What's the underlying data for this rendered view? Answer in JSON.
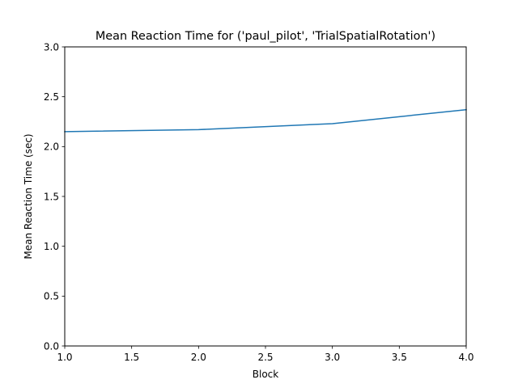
{
  "chart_data": {
    "type": "line",
    "title": "Mean Reaction Time for ('paul_pilot', 'TrialSpatialRotation')",
    "xlabel": "Block",
    "ylabel": "Mean Reaction Time (sec)",
    "xlim": [
      1.0,
      4.0
    ],
    "ylim": [
      0.0,
      3.0
    ],
    "grid": false,
    "x_ticks": [
      "1.0",
      "1.5",
      "2.0",
      "2.5",
      "3.0",
      "3.5",
      "4.0"
    ],
    "y_ticks": [
      "0.0",
      "0.5",
      "1.0",
      "1.5",
      "2.0",
      "2.5",
      "3.0"
    ],
    "series": [
      {
        "color": "#1f77b4",
        "x": [
          1.0,
          2.0,
          3.0,
          4.0
        ],
        "y": [
          2.15,
          2.17,
          2.23,
          2.37
        ]
      }
    ]
  }
}
